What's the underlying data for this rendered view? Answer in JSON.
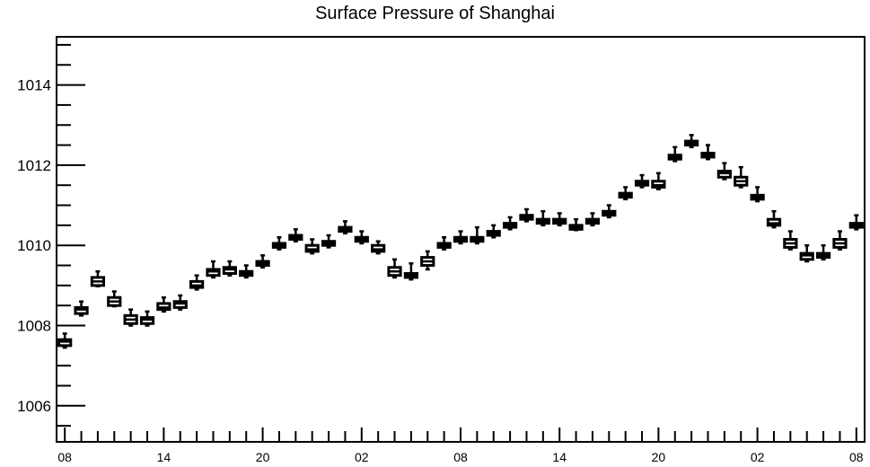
{
  "chart_data": {
    "type": "boxplot",
    "title": "Surface Pressure of Shanghai",
    "xlabel": "",
    "ylabel": "",
    "xlim": [
      0,
      49
    ],
    "ylim": [
      1005.1,
      1015.2
    ],
    "y_ticks": [
      1006,
      1008,
      1010,
      1012,
      1014
    ],
    "y_tick_labels": [
      "1006",
      "1008",
      "1010",
      "1012",
      "1014"
    ],
    "x_ticks": [
      1,
      7,
      13,
      19,
      25,
      31,
      37,
      43,
      49
    ],
    "x_tick_labels": [
      "08",
      "14",
      "20",
      "02",
      "08",
      "14",
      "20",
      "02",
      "08"
    ],
    "grid": false,
    "series": [
      {
        "medians": [
          1007.6,
          1008.4,
          1009.1,
          1008.6,
          1008.15,
          1008.15,
          1008.45,
          1008.55,
          1009.0,
          1009.35,
          1009.4,
          1009.3,
          1009.55,
          1010.0,
          1010.2,
          1009.9,
          1010.05,
          1010.4,
          1010.15,
          1009.9,
          1009.35,
          1009.25,
          1009.6,
          1010.0,
          1010.15,
          1010.15,
          1010.3,
          1010.5,
          1010.7,
          1010.6,
          1010.6,
          1010.45,
          1010.6,
          1010.8,
          1011.25,
          1011.55,
          1011.5,
          1012.2,
          1012.55,
          1012.25,
          1011.8,
          1011.6,
          1011.2,
          1010.55,
          1010.05,
          1009.75,
          1009.75,
          1010.05,
          1010.5
        ],
        "q1": [
          1007.5,
          1008.3,
          1009.0,
          1008.5,
          1008.05,
          1008.05,
          1008.4,
          1008.45,
          1008.95,
          1009.25,
          1009.3,
          1009.25,
          1009.5,
          1009.95,
          1010.15,
          1009.85,
          1010.0,
          1010.35,
          1010.1,
          1009.85,
          1009.25,
          1009.2,
          1009.5,
          1009.95,
          1010.1,
          1010.1,
          1010.25,
          1010.45,
          1010.65,
          1010.55,
          1010.55,
          1010.4,
          1010.55,
          1010.75,
          1011.2,
          1011.5,
          1011.45,
          1012.15,
          1012.5,
          1012.2,
          1011.7,
          1011.5,
          1011.15,
          1010.5,
          1009.95,
          1009.65,
          1009.7,
          1009.95,
          1010.45
        ],
        "q3": [
          1007.65,
          1008.45,
          1009.2,
          1008.7,
          1008.25,
          1008.2,
          1008.55,
          1008.6,
          1009.1,
          1009.4,
          1009.45,
          1009.35,
          1009.6,
          1010.05,
          1010.25,
          1010.0,
          1010.1,
          1010.45,
          1010.2,
          1010.0,
          1009.45,
          1009.3,
          1009.7,
          1010.05,
          1010.2,
          1010.2,
          1010.35,
          1010.55,
          1010.75,
          1010.65,
          1010.65,
          1010.5,
          1010.65,
          1010.85,
          1011.3,
          1011.6,
          1011.6,
          1012.25,
          1012.6,
          1012.3,
          1011.85,
          1011.7,
          1011.25,
          1010.65,
          1010.15,
          1009.8,
          1009.8,
          1010.15,
          1010.55
        ],
        "min": [
          1007.45,
          1008.25,
          1008.98,
          1008.48,
          1008.0,
          1008.0,
          1008.35,
          1008.4,
          1008.9,
          1009.2,
          1009.25,
          1009.2,
          1009.45,
          1009.9,
          1010.1,
          1009.8,
          1009.95,
          1010.3,
          1010.05,
          1009.8,
          1009.2,
          1009.15,
          1009.4,
          1009.9,
          1010.05,
          1010.05,
          1010.2,
          1010.4,
          1010.6,
          1010.5,
          1010.5,
          1010.38,
          1010.5,
          1010.7,
          1011.15,
          1011.45,
          1011.4,
          1012.1,
          1012.45,
          1012.15,
          1011.65,
          1011.45,
          1011.1,
          1010.45,
          1009.9,
          1009.6,
          1009.65,
          1009.9,
          1010.4
        ],
        "max": [
          1007.8,
          1008.6,
          1009.35,
          1008.85,
          1008.4,
          1008.35,
          1008.7,
          1008.75,
          1009.25,
          1009.6,
          1009.6,
          1009.5,
          1009.75,
          1010.2,
          1010.4,
          1010.15,
          1010.25,
          1010.6,
          1010.35,
          1010.1,
          1009.65,
          1009.55,
          1009.85,
          1010.2,
          1010.35,
          1010.45,
          1010.5,
          1010.7,
          1010.9,
          1010.85,
          1010.8,
          1010.65,
          1010.8,
          1011.0,
          1011.45,
          1011.75,
          1011.8,
          1012.45,
          1012.75,
          1012.5,
          1012.05,
          1011.95,
          1011.45,
          1010.85,
          1010.35,
          1010.0,
          1010.0,
          1010.35,
          1010.75
        ]
      }
    ]
  }
}
